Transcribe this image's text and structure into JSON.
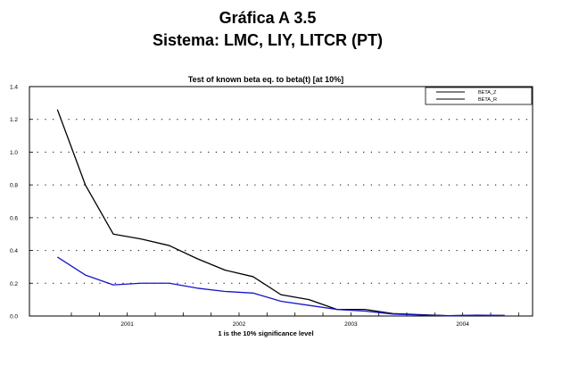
{
  "header": {
    "title": "Gráfica A 3.5",
    "subtitle": "Sistema: LMC, LIY, LITCR (PT)"
  },
  "chart_data": {
    "type": "line",
    "title": "Test of known beta eq. to beta(t) [at 10%]",
    "note": "1 is the 10% significance level",
    "xlabel": "",
    "ylabel": "",
    "x": [
      0,
      1,
      2,
      3,
      4,
      5,
      6,
      7,
      8,
      9,
      10,
      11,
      12,
      13,
      14,
      15,
      16
    ],
    "x_ticks": [
      {
        "label": "2001",
        "x": 2.5
      },
      {
        "label": "2002",
        "x": 6.5
      },
      {
        "label": "2003",
        "x": 10.5
      },
      {
        "label": "2004",
        "x": 14.5
      }
    ],
    "xlim": [
      -1,
      17
    ],
    "ylim": [
      0,
      1.4
    ],
    "y_ticks": [
      "0.0",
      "0.2",
      "0.4",
      "0.6",
      "0.8",
      "1.0",
      "1.2",
      "1.4"
    ],
    "grid": true,
    "legend_position": "top-right",
    "series": [
      {
        "name": "BETA_Z",
        "color": "#000000",
        "values": [
          1.26,
          0.8,
          0.5,
          0.47,
          0.43,
          0.35,
          0.28,
          0.24,
          0.13,
          0.1,
          0.04,
          0.04,
          0.015,
          0.008,
          0.002,
          0.004,
          0.003
        ]
      },
      {
        "name": "BETA_R",
        "color": "#1515c8",
        "values": [
          0.36,
          0.25,
          0.19,
          0.2,
          0.2,
          0.17,
          0.15,
          0.14,
          0.09,
          0.065,
          0.04,
          0.03,
          0.012,
          0.006,
          0.001,
          0.005,
          0.003
        ]
      }
    ]
  }
}
